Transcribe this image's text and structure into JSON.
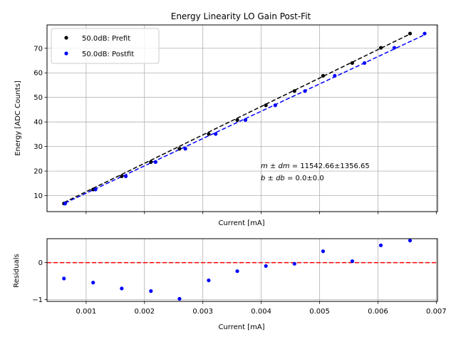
{
  "chart_data": [
    {
      "type": "scatter",
      "title": "Energy Linearity LO Gain Post-Fit",
      "xlabel": "Current [mA]",
      "ylabel": "Energy [ADC Counts]",
      "xlim": [
        0.00033,
        0.00702
      ],
      "ylim": [
        3.5,
        79.5
      ],
      "xticks": [
        0.001,
        0.002,
        0.003,
        0.004,
        0.005,
        0.006,
        0.007
      ],
      "yticks": [
        10,
        20,
        30,
        40,
        50,
        60,
        70
      ],
      "ytick_labels": [
        "10",
        "20",
        "30",
        "40",
        "50",
        "60",
        "70"
      ],
      "show_xtick_labels": false,
      "grid": true,
      "legend_position": "top-left",
      "series": [
        {
          "name": "50.0dB: Prefit",
          "color": "#000000",
          "marker": "point",
          "x": [
            0.00062,
            0.00112,
            0.00161,
            0.00211,
            0.0026,
            0.0031,
            0.00359,
            0.00408,
            0.00457,
            0.00506,
            0.00556,
            0.00605,
            0.00655
          ],
          "y": [
            6.8,
            12.5,
            17.9,
            23.7,
            29.1,
            35.1,
            40.8,
            46.8,
            52.6,
            58.8,
            64.0,
            70.2,
            76.0
          ]
        },
        {
          "name": "50.0dB: Postfit",
          "color": "#0000ff",
          "marker": "point",
          "x": [
            0.00064,
            0.00116,
            0.00168,
            0.00219,
            0.0027,
            0.00322,
            0.00373,
            0.00424,
            0.00475,
            0.00526,
            0.00577,
            0.00628,
            0.0068
          ],
          "y": [
            6.8,
            12.5,
            17.9,
            23.7,
            29.1,
            35.1,
            40.8,
            46.8,
            52.6,
            58.8,
            64.0,
            70.2,
            76.0
          ]
        }
      ],
      "fit_lines": [
        {
          "color": "#000000",
          "dash": "dashed",
          "x": [
            0.00062,
            0.00655
          ],
          "y": [
            7.2,
            75.8
          ]
        },
        {
          "color": "#0000ff",
          "dash": "dashed",
          "x": [
            0.00064,
            0.0068
          ],
          "y": [
            7.0,
            75.5
          ]
        }
      ],
      "annotation": {
        "line1_math": "m ± dm",
        "line1_value": " = 11542.66±1356.65",
        "line2_math": "b ± db",
        "line2_value": " = 0.0±0.0"
      }
    },
    {
      "type": "scatter",
      "title": "",
      "xlabel": "Current [mA]",
      "ylabel": "Residuals",
      "xlim": [
        0.00033,
        0.00702
      ],
      "ylim": [
        -1.05,
        0.65
      ],
      "xticks": [
        0.001,
        0.002,
        0.003,
        0.004,
        0.005,
        0.006,
        0.007
      ],
      "xtick_labels": [
        "0.001",
        "0.002",
        "0.003",
        "0.004",
        "0.005",
        "0.006",
        "0.007"
      ],
      "yticks": [
        -1,
        0
      ],
      "ytick_labels": [
        "−1",
        "0"
      ],
      "show_xtick_labels": true,
      "grid": true,
      "zero_line": {
        "y": 0,
        "color": "#ff0000",
        "dash": "dashed"
      },
      "series": [
        {
          "color": "#0000ff",
          "marker": "point",
          "x": [
            0.00062,
            0.00112,
            0.00161,
            0.00211,
            0.0026,
            0.0031,
            0.00359,
            0.00408,
            0.00457,
            0.00506,
            0.00556,
            0.00605,
            0.00655
          ],
          "y": [
            -0.43,
            -0.54,
            -0.7,
            -0.77,
            -0.98,
            -0.48,
            -0.23,
            -0.09,
            -0.03,
            0.31,
            0.04,
            0.47,
            0.6
          ]
        }
      ]
    }
  ]
}
